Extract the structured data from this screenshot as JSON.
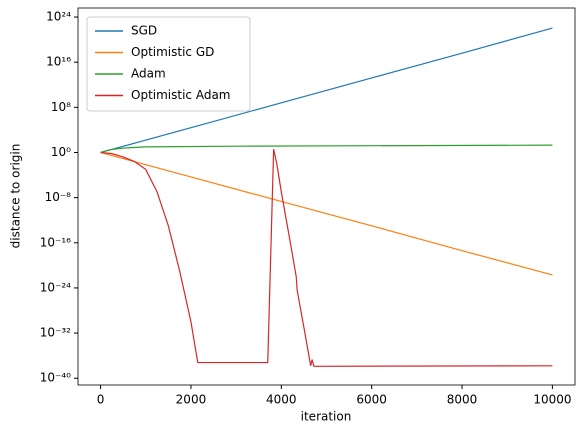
{
  "chart_data": {
    "type": "line",
    "xlabel": "iteration",
    "ylabel": "distance to origin",
    "yscale": "log",
    "legend": "upper left",
    "grid": false,
    "xlim": [
      -500,
      10500
    ],
    "xticks": [
      0,
      2000,
      4000,
      6000,
      8000,
      10000
    ],
    "ylim": [
      6.3e-42,
      4e+25
    ],
    "yticks": [
      {
        "value": 1e-40,
        "label": "10⁻⁴⁰"
      },
      {
        "value": 1e-32,
        "label": "10⁻³²"
      },
      {
        "value": 1e-24,
        "label": "10⁻²⁴"
      },
      {
        "value": 1e-16,
        "label": "10⁻¹⁶"
      },
      {
        "value": 1e-08,
        "label": "10⁻⁸"
      },
      {
        "value": 1,
        "label": "10⁰"
      },
      {
        "value": 100000000.0,
        "label": "10⁸"
      },
      {
        "value": 1e+16,
        "label": "10¹⁶"
      },
      {
        "value": 1e+24,
        "label": "10²⁴"
      }
    ],
    "series": [
      {
        "name": "SGD",
        "color": "#1f77b4",
        "x": [
          0,
          2000,
          4000,
          6000,
          8000,
          10000
        ],
        "values": [
          1,
          25000.0,
          630000000.0,
          16000000000000.0,
          4e+17,
          1.1e+22
        ]
      },
      {
        "name": "Optimistic GD",
        "color": "#ff7f0e",
        "x": [
          0,
          2000,
          4000,
          6000,
          8000,
          10000
        ],
        "values": [
          1,
          4.6e-05,
          2.1e-09,
          1e-13,
          4e-18,
          2e-22
        ]
      },
      {
        "name": "Adam",
        "color": "#2ca02c",
        "x": [
          0,
          200,
          500,
          1000,
          3000,
          10000
        ],
        "values": [
          1,
          3,
          6,
          10,
          13,
          20
        ]
      },
      {
        "name": "Optimistic Adam",
        "color": "#d62728",
        "x": [
          0,
          250,
          500,
          750,
          1000,
          1250,
          1500,
          1750,
          2000,
          2150,
          3700,
          3830,
          3900,
          4000,
          4200,
          4330,
          4350,
          4500,
          4650,
          4680,
          4720,
          10000
        ],
        "values": [
          1,
          0.63,
          0.16,
          0.025,
          0.001,
          1e-07,
          1e-13,
          1e-21,
          1e-30,
          6e-38,
          6e-38,
          4,
          0.01,
          1e-07,
          1e-16,
          1e-22,
          4e-25,
          1e-31,
          1.6e-38,
          2e-37,
          1.3e-38,
          1.6e-38
        ]
      }
    ]
  }
}
